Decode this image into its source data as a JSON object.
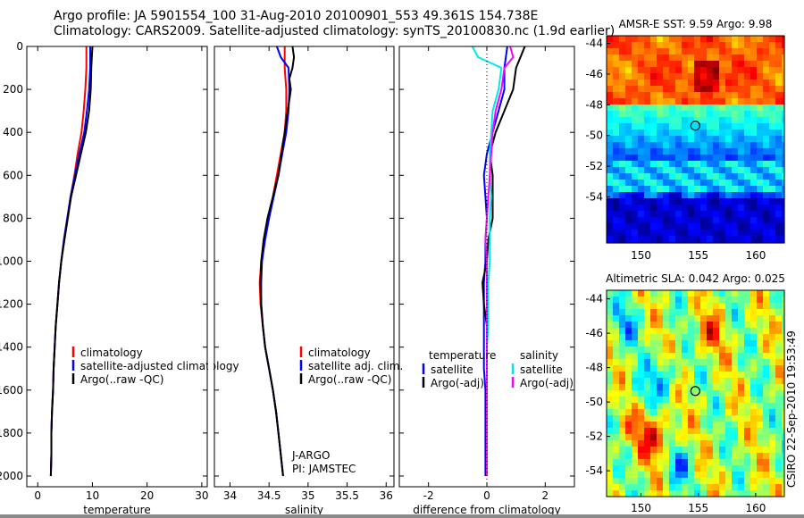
{
  "header": {
    "line1": "Argo profile: JA 5901554_100 31-Aug-2010 20100901_553 49.361S 154.738E",
    "line2": "Climatology: CARS2009. Satellite-adjusted climatology: synTS_20100830.nc (1.9d earlier)"
  },
  "side_note": "CSIRO 22-Sep-2010 19:53:49",
  "colors": {
    "climatology": "#ff0000",
    "satellite": "#0000ff",
    "argo": "#000000",
    "sal_satellite": "#00e0e0",
    "sal_argo": "#ff00ff"
  },
  "chart_data": [
    {
      "type": "line",
      "xlabel": "temperature",
      "xlim": [
        -2,
        31
      ],
      "xticks": [
        0,
        10,
        20,
        30
      ],
      "ylim": [
        2050,
        0
      ],
      "yticks": [
        0,
        200,
        400,
        600,
        800,
        1000,
        1200,
        1400,
        1600,
        1800,
        2000
      ],
      "legend": {
        "position": "lower-right",
        "entries": [
          "climatology",
          "satellite-adjusted climatology",
          "Argo(..raw -QC)"
        ]
      },
      "series": [
        {
          "name": "climatology",
          "color": "red",
          "points": [
            [
              8.9,
              0
            ],
            [
              8.9,
              100
            ],
            [
              8.7,
              200
            ],
            [
              8.4,
              300
            ],
            [
              8.0,
              400
            ],
            [
              7.3,
              500
            ],
            [
              6.7,
              600
            ],
            [
              6.0,
              700
            ],
            [
              5.4,
              800
            ],
            [
              4.8,
              900
            ],
            [
              4.3,
              1000
            ],
            [
              3.9,
              1100
            ],
            [
              3.6,
              1200
            ],
            [
              3.3,
              1300
            ],
            [
              3.1,
              1400
            ],
            [
              2.9,
              1500
            ],
            [
              2.8,
              1600
            ],
            [
              2.6,
              1700
            ],
            [
              2.5,
              1800
            ],
            [
              2.5,
              1900
            ],
            [
              2.4,
              2000
            ]
          ]
        },
        {
          "name": "satellite-adjusted climatology",
          "color": "blue",
          "points": [
            [
              9.6,
              0
            ],
            [
              9.6,
              100
            ],
            [
              9.4,
              200
            ],
            [
              9.0,
              300
            ],
            [
              8.5,
              400
            ],
            [
              7.6,
              500
            ],
            [
              6.8,
              600
            ],
            [
              6.0,
              700
            ],
            [
              5.4,
              800
            ],
            [
              4.8,
              900
            ],
            [
              4.3,
              1000
            ],
            [
              3.9,
              1100
            ],
            [
              3.6,
              1200
            ],
            [
              3.3,
              1300
            ],
            [
              3.1,
              1400
            ],
            [
              2.9,
              1500
            ],
            [
              2.8,
              1600
            ],
            [
              2.6,
              1700
            ],
            [
              2.5,
              1800
            ],
            [
              2.5,
              1900
            ],
            [
              2.4,
              2000
            ]
          ]
        },
        {
          "name": "Argo(..raw -QC)",
          "color": "black",
          "points": [
            [
              10.0,
              0
            ],
            [
              9.9,
              50
            ],
            [
              9.8,
              100
            ],
            [
              9.7,
              200
            ],
            [
              9.4,
              300
            ],
            [
              8.8,
              400
            ],
            [
              7.9,
              500
            ],
            [
              7.0,
              600
            ],
            [
              6.1,
              700
            ],
            [
              5.5,
              800
            ],
            [
              4.9,
              900
            ],
            [
              4.3,
              1000
            ],
            [
              3.9,
              1100
            ],
            [
              3.6,
              1200
            ],
            [
              3.3,
              1300
            ],
            [
              3.1,
              1400
            ],
            [
              2.9,
              1500
            ],
            [
              2.8,
              1600
            ],
            [
              2.6,
              1700
            ],
            [
              2.5,
              1800
            ],
            [
              2.5,
              1900
            ],
            [
              2.4,
              2000
            ]
          ]
        }
      ]
    },
    {
      "type": "line",
      "xlabel": "salinity",
      "xlim": [
        33.8,
        36.1
      ],
      "xticks": [
        34,
        34.5,
        35,
        35.5,
        36
      ],
      "ylim": [
        2050,
        0
      ],
      "legend": {
        "position": "lower-right",
        "entries": [
          "climatology",
          "satellite adj. clim.",
          "Argo(..raw -QC)"
        ]
      },
      "annotation": [
        "J-ARGO",
        "PI: JAMSTEC"
      ],
      "series": [
        {
          "name": "climatology",
          "color": "red",
          "points": [
            [
              34.7,
              0
            ],
            [
              34.7,
              100
            ],
            [
              34.72,
              200
            ],
            [
              34.72,
              300
            ],
            [
              34.7,
              400
            ],
            [
              34.65,
              500
            ],
            [
              34.6,
              600
            ],
            [
              34.55,
              700
            ],
            [
              34.5,
              800
            ],
            [
              34.44,
              900
            ],
            [
              34.4,
              1000
            ],
            [
              34.38,
              1100
            ],
            [
              34.39,
              1200
            ],
            [
              34.42,
              1300
            ],
            [
              34.45,
              1400
            ],
            [
              34.5,
              1500
            ],
            [
              34.55,
              1600
            ],
            [
              34.59,
              1700
            ],
            [
              34.62,
              1800
            ],
            [
              34.65,
              1900
            ],
            [
              34.68,
              2000
            ]
          ]
        },
        {
          "name": "satellite adj. clim.",
          "color": "blue",
          "points": [
            [
              34.6,
              0
            ],
            [
              34.65,
              50
            ],
            [
              34.75,
              100
            ],
            [
              34.76,
              200
            ],
            [
              34.75,
              300
            ],
            [
              34.72,
              400
            ],
            [
              34.67,
              500
            ],
            [
              34.62,
              600
            ],
            [
              34.56,
              700
            ],
            [
              34.5,
              800
            ],
            [
              34.45,
              900
            ],
            [
              34.41,
              1000
            ],
            [
              34.4,
              1100
            ],
            [
              34.4,
              1200
            ],
            [
              34.42,
              1300
            ],
            [
              34.45,
              1400
            ],
            [
              34.5,
              1500
            ],
            [
              34.55,
              1600
            ],
            [
              34.59,
              1700
            ],
            [
              34.62,
              1800
            ],
            [
              34.65,
              1900
            ],
            [
              34.68,
              2000
            ]
          ]
        },
        {
          "name": "Argo(..raw -QC)",
          "color": "black",
          "points": [
            [
              34.8,
              0
            ],
            [
              34.82,
              50
            ],
            [
              34.8,
              100
            ],
            [
              34.76,
              150
            ],
            [
              34.78,
              200
            ],
            [
              34.74,
              300
            ],
            [
              34.7,
              400
            ],
            [
              34.66,
              500
            ],
            [
              34.62,
              600
            ],
            [
              34.55,
              700
            ],
            [
              34.48,
              800
            ],
            [
              34.43,
              900
            ],
            [
              34.4,
              1000
            ],
            [
              34.39,
              1100
            ],
            [
              34.4,
              1200
            ],
            [
              34.42,
              1300
            ],
            [
              34.45,
              1400
            ],
            [
              34.5,
              1500
            ],
            [
              34.55,
              1600
            ],
            [
              34.59,
              1700
            ],
            [
              34.62,
              1800
            ],
            [
              34.65,
              1900
            ],
            [
              34.68,
              2000
            ]
          ]
        }
      ]
    },
    {
      "type": "line",
      "xlabel": "difference from climatology",
      "xlim": [
        -3,
        3
      ],
      "xticks": [
        -2,
        0,
        2
      ],
      "ylim": [
        2050,
        0
      ],
      "legend": {
        "position": "lower-right",
        "groups": [
          {
            "title": "temperature",
            "entries": [
              "satellite",
              "Argo(-adj)"
            ]
          },
          {
            "title": "salinity",
            "entries": [
              "satellite",
              "Argo(-adj)"
            ]
          }
        ]
      },
      "series": [
        {
          "name": "temperature satellite",
          "color": "blue",
          "points": [
            [
              0.7,
              0
            ],
            [
              0.6,
              100
            ],
            [
              0.6,
              200
            ],
            [
              0.4,
              300
            ],
            [
              0.2,
              400
            ],
            [
              0.0,
              500
            ],
            [
              -0.1,
              600
            ],
            [
              -0.05,
              700
            ],
            [
              0.0,
              800
            ],
            [
              -0.05,
              900
            ],
            [
              -0.05,
              1000
            ],
            [
              -0.1,
              1100
            ],
            [
              -0.1,
              1200
            ],
            [
              -0.1,
              1300
            ],
            [
              -0.1,
              1400
            ],
            [
              -0.1,
              1500
            ],
            [
              -0.05,
              1600
            ],
            [
              -0.05,
              1700
            ],
            [
              -0.05,
              1800
            ],
            [
              -0.05,
              1900
            ],
            [
              -0.05,
              2000
            ]
          ]
        },
        {
          "name": "temperature Argo(-adj)",
          "color": "black",
          "points": [
            [
              1.3,
              0
            ],
            [
              1.0,
              100
            ],
            [
              0.9,
              200
            ],
            [
              0.6,
              300
            ],
            [
              0.3,
              400
            ],
            [
              0.1,
              500
            ],
            [
              0.2,
              600
            ],
            [
              0.2,
              700
            ],
            [
              0.2,
              800
            ],
            [
              0.05,
              900
            ],
            [
              0.0,
              1000
            ],
            [
              -0.15,
              1100
            ],
            [
              -0.1,
              1200
            ],
            [
              0.0,
              1300
            ],
            [
              0.0,
              1400
            ],
            [
              0.0,
              1500
            ],
            [
              0.0,
              1600
            ],
            [
              0.0,
              1700
            ],
            [
              0.0,
              1800
            ],
            [
              0.0,
              1900
            ],
            [
              0.0,
              2000
            ]
          ]
        },
        {
          "name": "salinity satellite",
          "color": "cyan",
          "points": [
            [
              -0.5,
              0
            ],
            [
              -0.3,
              50
            ],
            [
              0.5,
              100
            ],
            [
              0.4,
              200
            ],
            [
              0.2,
              300
            ],
            [
              0.15,
              400
            ],
            [
              0.1,
              500
            ],
            [
              0.1,
              600
            ],
            [
              0.15,
              700
            ],
            [
              0.1,
              800
            ],
            [
              0.1,
              900
            ],
            [
              0.1,
              1000
            ],
            [
              0.05,
              1100
            ],
            [
              0.05,
              1200
            ],
            [
              0.05,
              1300
            ],
            [
              0.0,
              1400
            ],
            [
              0.0,
              1500
            ],
            [
              0.0,
              1600
            ],
            [
              0.0,
              1700
            ],
            [
              0.0,
              1800
            ],
            [
              0.0,
              1900
            ],
            [
              0.0,
              2000
            ]
          ]
        },
        {
          "name": "salinity Argo(-adj)",
          "color": "magenta",
          "points": [
            [
              0.8,
              0
            ],
            [
              0.9,
              50
            ],
            [
              0.6,
              100
            ],
            [
              0.5,
              200
            ],
            [
              0.3,
              300
            ],
            [
              0.2,
              400
            ],
            [
              0.15,
              500
            ],
            [
              0.1,
              600
            ],
            [
              0.05,
              700
            ],
            [
              0.0,
              800
            ],
            [
              -0.05,
              900
            ],
            [
              0.0,
              1000
            ],
            [
              0.0,
              1100
            ],
            [
              0.0,
              1200
            ],
            [
              0.0,
              1300
            ],
            [
              0.0,
              1400
            ],
            [
              0.0,
              1500
            ],
            [
              0.0,
              1600
            ],
            [
              0.0,
              1700
            ],
            [
              0.0,
              1800
            ],
            [
              0.0,
              1900
            ],
            [
              0.0,
              2000
            ]
          ]
        }
      ]
    },
    {
      "type": "heatmap",
      "title": "AMSR-E SST: 9.59 Argo: 9.98",
      "xlim": [
        147,
        162.5
      ],
      "xticks": [
        150,
        155,
        160
      ],
      "ylim": [
        -57,
        -43.5
      ],
      "yticks": [
        -44,
        -46,
        -48,
        -50,
        -52,
        -54
      ],
      "marker": {
        "lon": 154.738,
        "lat": -49.361
      },
      "colormap": "jet"
    },
    {
      "type": "heatmap",
      "title": "Altimetric SLA: 0.042 Argo: 0.025",
      "xlim": [
        147,
        162.5
      ],
      "xticks": [
        150,
        155,
        160
      ],
      "ylim": [
        -55.5,
        -43.5
      ],
      "yticks": [
        -44,
        -46,
        -48,
        -50,
        -52,
        -54
      ],
      "marker": {
        "lon": 154.738,
        "lat": -49.361
      },
      "colormap": "jet"
    }
  ]
}
